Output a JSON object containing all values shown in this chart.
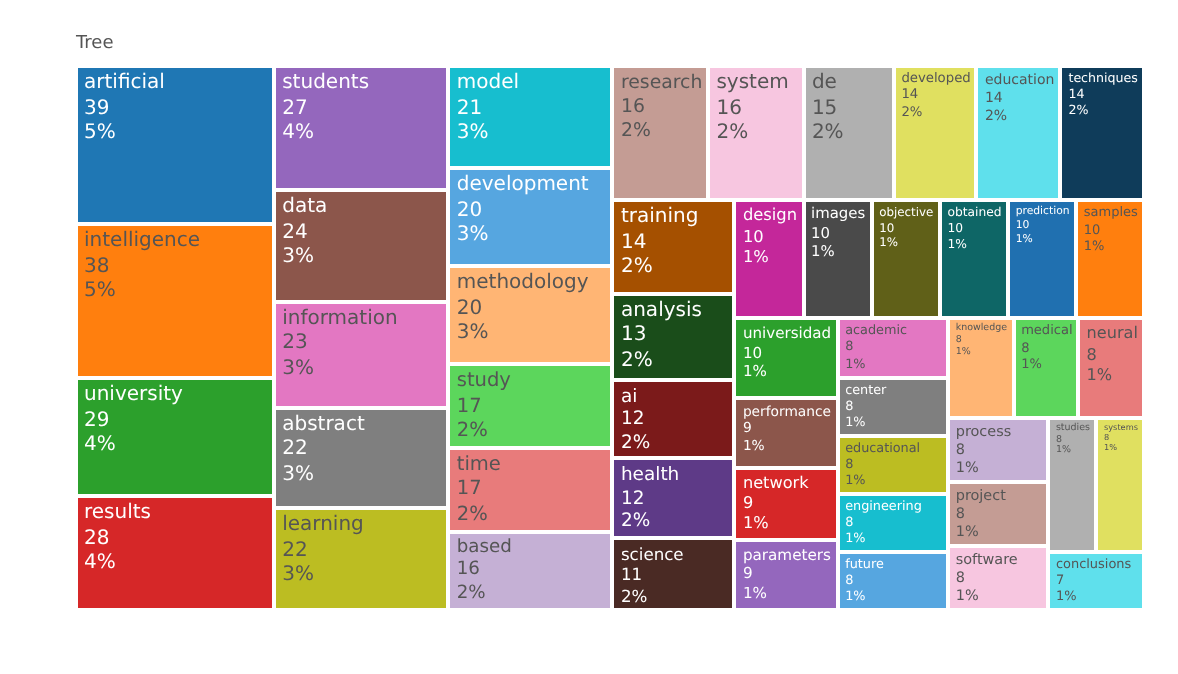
{
  "chart_data": {
    "type": "other",
    "title": "Tree",
    "data_labels": true,
    "categories": [
      "artificial",
      "intelligence",
      "university",
      "results",
      "students",
      "data",
      "information",
      "abstract",
      "learning",
      "model",
      "development",
      "methodology",
      "study",
      "time",
      "based",
      "research",
      "system",
      "de",
      "developed",
      "education",
      "techniques",
      "training",
      "analysis",
      "ai",
      "health",
      "science",
      "design",
      "images",
      "objective",
      "obtained",
      "prediction",
      "samples",
      "universidad",
      "performance",
      "network",
      "parameters",
      "academic",
      "center",
      "educational",
      "engineering",
      "future",
      "knowledge",
      "medical",
      "neural",
      "process",
      "project",
      "software",
      "studies",
      "systems",
      "conclusions"
    ],
    "values": [
      39,
      38,
      29,
      28,
      27,
      24,
      23,
      22,
      22,
      21,
      20,
      20,
      17,
      17,
      16,
      16,
      16,
      15,
      14,
      14,
      14,
      14,
      13,
      12,
      12,
      11,
      10,
      10,
      10,
      10,
      10,
      10,
      10,
      9,
      9,
      9,
      8,
      8,
      8,
      8,
      8,
      8,
      8,
      8,
      8,
      8,
      8,
      8,
      8,
      7
    ],
    "annotations": [
      {
        "text": "5%",
        "x": "artificial"
      },
      {
        "text": "5%",
        "x": "intelligence"
      },
      {
        "text": "4%",
        "x": "university"
      },
      {
        "text": "4%",
        "x": "results"
      },
      {
        "text": "4%",
        "x": "students"
      },
      {
        "text": "3%",
        "x": "data"
      },
      {
        "text": "3%",
        "x": "information"
      },
      {
        "text": "3%",
        "x": "abstract"
      },
      {
        "text": "3%",
        "x": "learning"
      },
      {
        "text": "3%",
        "x": "model"
      },
      {
        "text": "3%",
        "x": "development"
      },
      {
        "text": "3%",
        "x": "methodology"
      },
      {
        "text": "2%",
        "x": "study"
      },
      {
        "text": "2%",
        "x": "time"
      },
      {
        "text": "2%",
        "x": "based"
      },
      {
        "text": "2%",
        "x": "research"
      },
      {
        "text": "2%",
        "x": "system"
      },
      {
        "text": "2%",
        "x": "de"
      },
      {
        "text": "2%",
        "x": "developed"
      },
      {
        "text": "2%",
        "x": "education"
      },
      {
        "text": "2%",
        "x": "techniques"
      },
      {
        "text": "2%",
        "x": "training"
      },
      {
        "text": "2%",
        "x": "analysis"
      },
      {
        "text": "2%",
        "x": "ai"
      },
      {
        "text": "2%",
        "x": "health"
      },
      {
        "text": "2%",
        "x": "science"
      },
      {
        "text": "1%",
        "x": "design"
      },
      {
        "text": "1%",
        "x": "images"
      },
      {
        "text": "1%",
        "x": "objective"
      },
      {
        "text": "1%",
        "x": "obtained"
      },
      {
        "text": "1%",
        "x": "prediction"
      },
      {
        "text": "1%",
        "x": "samples"
      },
      {
        "text": "1%",
        "x": "universidad"
      },
      {
        "text": "1%",
        "x": "performance"
      },
      {
        "text": "1%",
        "x": "network"
      },
      {
        "text": "1%",
        "x": "parameters"
      },
      {
        "text": "1%",
        "x": "academic"
      },
      {
        "text": "1%",
        "x": "center"
      },
      {
        "text": "1%",
        "x": "educational"
      },
      {
        "text": "1%",
        "x": "engineering"
      },
      {
        "text": "1%",
        "x": "future"
      },
      {
        "text": "1%",
        "x": "knowledge"
      },
      {
        "text": "1%",
        "x": "medical"
      },
      {
        "text": "1%",
        "x": "neural"
      },
      {
        "text": "1%",
        "x": "process"
      },
      {
        "text": "1%",
        "x": "project"
      },
      {
        "text": "1%",
        "x": "software"
      },
      {
        "text": "1%",
        "x": "studies"
      },
      {
        "text": "1%",
        "x": "systems"
      },
      {
        "text": "1%",
        "x": "conclusions"
      }
    ],
    "colors": [
      "#1f77b4",
      "#ff7f0e",
      "#2ca02c",
      "#d62728",
      "#9467bd",
      "#8c564b",
      "#e377c2",
      "#7f7f7f",
      "#bcbd22",
      "#17becf",
      "#56a6e0",
      "#ffb574",
      "#5cd65c",
      "#e87b7b",
      "#c5b0d5",
      "#c49c94",
      "#f7c6e0",
      "#b0b0b0",
      "#e0e060",
      "#5fe0ec",
      "#0f3c5a",
      "#a55000",
      "#1a4d1a",
      "#7b1a1a",
      "#5e3a87",
      "#4a2a24",
      "#c4279a",
      "#4a4a4a",
      "#606018",
      "#0e6666",
      "#2070b0",
      "#ff7f0e",
      "#2ca02c",
      "#8c564b",
      "#d62728",
      "#9467bd",
      "#e377c2",
      "#7f7f7f",
      "#bcbd22",
      "#17becf",
      "#56a6e0",
      "#ffb574",
      "#5cd65c",
      "#e87b7b",
      "#c5b0d5",
      "#c49c94",
      "#f7c6e0",
      "#b0b0b0",
      "#e0e060",
      "#5fe0ec"
    ]
  }
}
